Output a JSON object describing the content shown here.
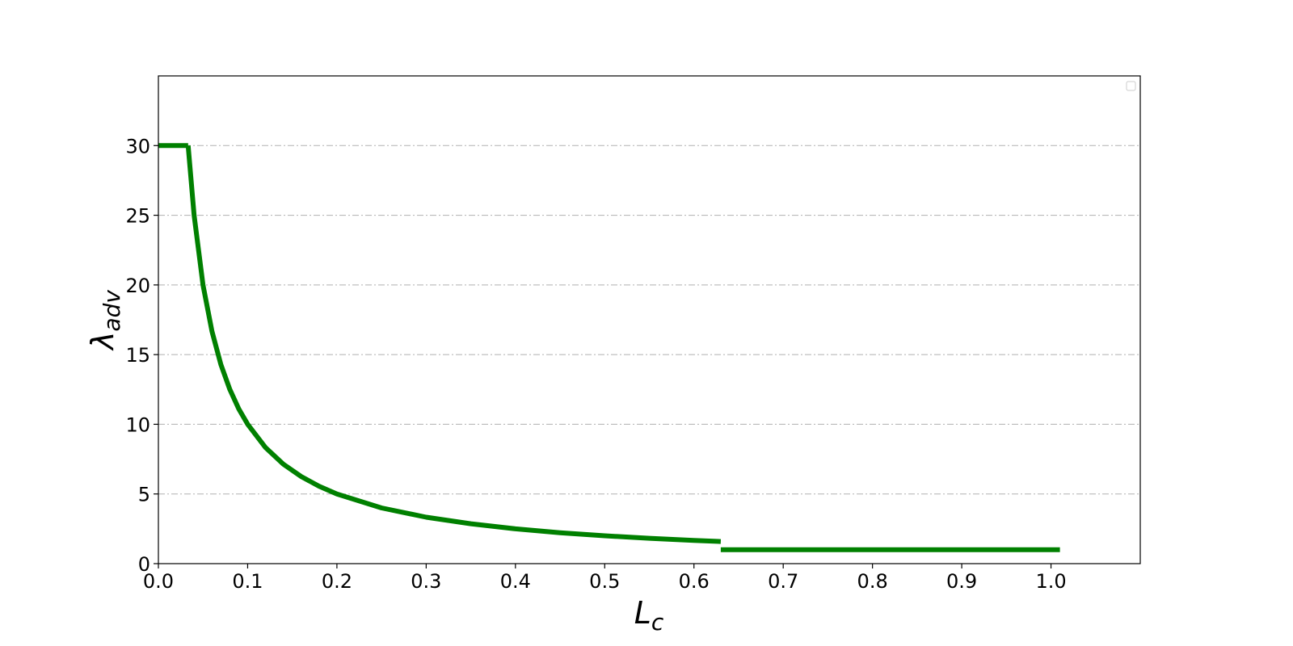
{
  "chart_data": {
    "type": "line",
    "title": "",
    "xlabel": "L",
    "xlabel_sub": "c",
    "ylabel": "λ",
    "ylabel_sub": "adv",
    "xlim": [
      0.0,
      1.1
    ],
    "ylim": [
      0,
      35
    ],
    "x_ticks": [
      0.0,
      0.1,
      0.2,
      0.3,
      0.4,
      0.5,
      0.6,
      0.7,
      0.8,
      0.9,
      1.0
    ],
    "x_tick_labels": [
      "0.0",
      "0.1",
      "0.2",
      "0.3",
      "0.4",
      "0.5",
      "0.6",
      "0.7",
      "0.8",
      "0.9",
      "1.0"
    ],
    "y_ticks": [
      0,
      5,
      10,
      15,
      20,
      25,
      30
    ],
    "y_tick_labels": [
      "0",
      "5",
      "10",
      "15",
      "20",
      "25",
      "30"
    ],
    "grid": "horizontal dash-dot",
    "legend": "top-right (empty)",
    "line_color": "#008000",
    "segments": [
      {
        "x": [
          0.0,
          0.0333
        ],
        "y": [
          30.0,
          30.0
        ]
      },
      {
        "x": [
          0.0333,
          0.04,
          0.05,
          0.06,
          0.07,
          0.08,
          0.09,
          0.1,
          0.12,
          0.14,
          0.16,
          0.18,
          0.2,
          0.25,
          0.3,
          0.35,
          0.4,
          0.45,
          0.5,
          0.55,
          0.6,
          0.63
        ],
        "y": [
          30.0,
          25.0,
          20.0,
          16.67,
          14.29,
          12.5,
          11.11,
          10.0,
          8.33,
          7.14,
          6.25,
          5.56,
          5.0,
          4.0,
          3.33,
          2.86,
          2.5,
          2.22,
          2.0,
          1.82,
          1.67,
          1.59
        ]
      },
      {
        "x": [
          0.63,
          1.01
        ],
        "y": [
          1.0,
          1.0
        ]
      }
    ]
  }
}
